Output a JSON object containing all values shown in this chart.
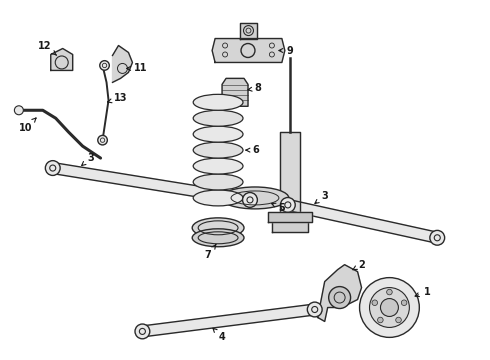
{
  "bg_color": "#ffffff",
  "line_color": "#2a2a2a",
  "line_width": 1.0,
  "fig_width": 4.9,
  "fig_height": 3.6,
  "dpi": 100
}
